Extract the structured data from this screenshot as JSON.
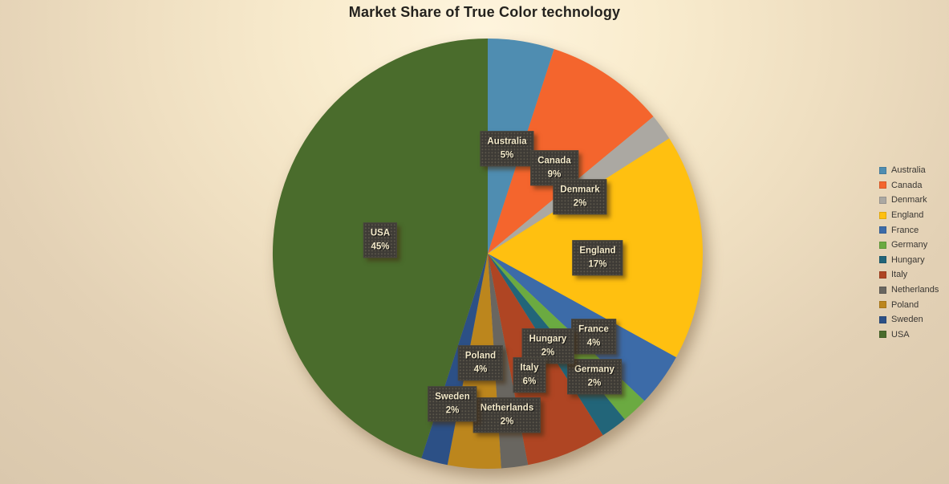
{
  "chart_data": {
    "type": "pie",
    "title": "Market Share of True Color technology",
    "unit": "%",
    "legend_position": "right",
    "direction": "clockwise",
    "start_angle_deg": 0,
    "categories": [
      "Australia",
      "Canada",
      "Denmark",
      "England",
      "France",
      "Germany",
      "Hungary",
      "Italy",
      "Netherlands",
      "Poland",
      "Sweden",
      "USA"
    ],
    "values": [
      5,
      9,
      2,
      17,
      4,
      2,
      2,
      6,
      2,
      4,
      2,
      45
    ],
    "colors": [
      "#4F8DB1",
      "#F4652D",
      "#ABA8A2",
      "#FFC010",
      "#3C6BA8",
      "#6BAA41",
      "#226579",
      "#AF4523",
      "#696660",
      "#BC861D",
      "#2C5086",
      "#4A6C2C"
    ],
    "label_text_color": "#F5EBCB",
    "label_box_color": "#3E3B36",
    "background_top_color": "#FEF4DD",
    "background_edge_color": "#D9C7AC"
  }
}
